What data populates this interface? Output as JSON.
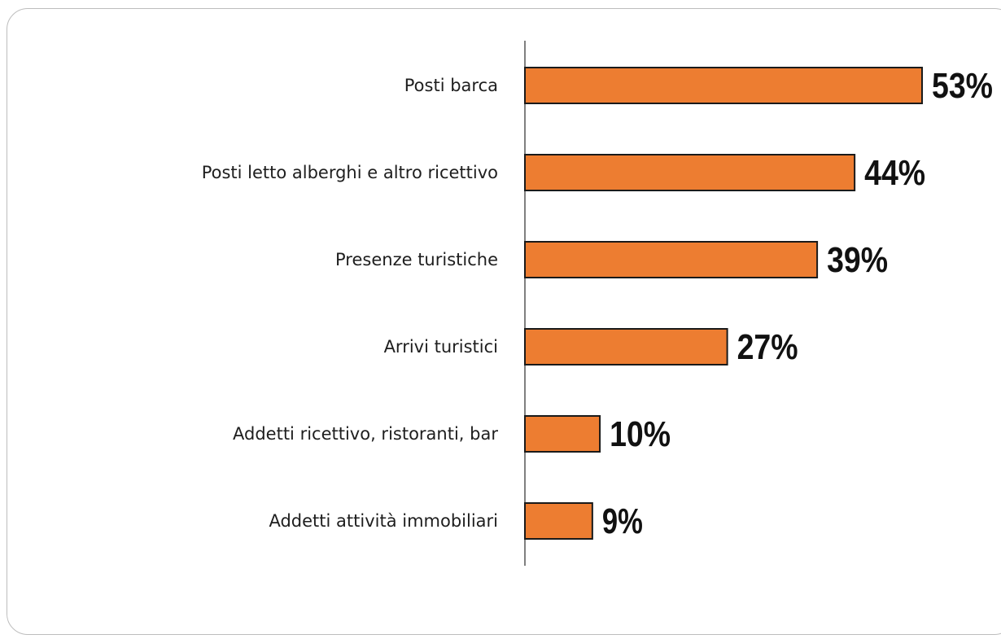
{
  "chart_data": {
    "type": "bar",
    "orientation": "horizontal",
    "categories": [
      "Posti barca",
      "Posti letto alberghi  e altro ricettivo",
      "Presenze turistiche",
      "Arrivi turistici",
      "Addetti ricettivo, ristoranti, bar",
      "Addetti attività immobiliari"
    ],
    "values": [
      53,
      44,
      39,
      27,
      10,
      9
    ],
    "value_labels": [
      "53%",
      "44%",
      "39%",
      "27%",
      "10%",
      "9%"
    ],
    "bar_color": "#ED7D31",
    "bar_outline": "#1a1a1a",
    "xlim": [
      0,
      53
    ],
    "grid": false
  }
}
